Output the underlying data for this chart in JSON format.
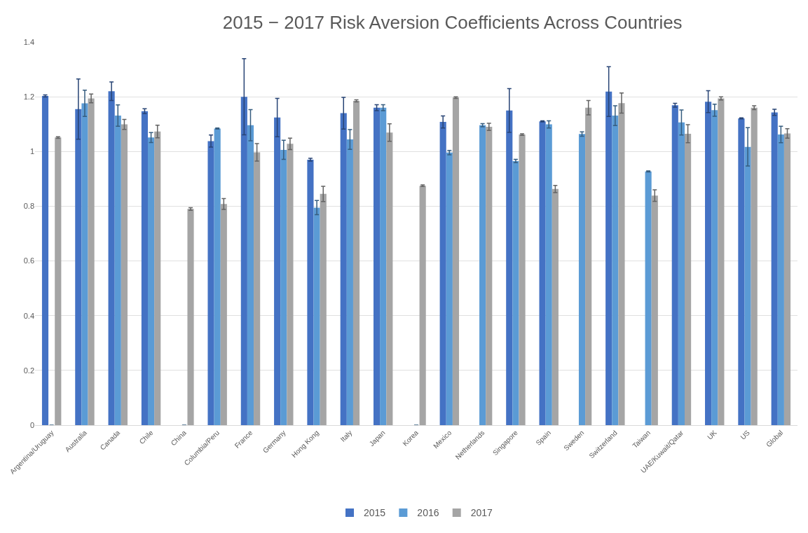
{
  "chart_data": {
    "type": "bar",
    "title": "2015 − 2017 Risk Aversion Coefficients Across Countries",
    "categories": [
      "Argentina/Uruguay",
      "Australia",
      "Canada",
      "Chile",
      "China",
      "Columbia/Peru",
      "France",
      "Germany",
      "Hong Kong",
      "Italy",
      "Japan",
      "Korea",
      "Mexico",
      "Netherlands",
      "Singapore",
      "Spain",
      "Sweden",
      "Switzerland",
      "Taiwan",
      "UAE/Kuwait/Qatar",
      "UK",
      "US",
      "Global"
    ],
    "series": [
      {
        "name": "2015",
        "color": "#4472c4",
        "values": [
          1.203,
          1.155,
          1.22,
          1.147,
          null,
          1.038,
          1.2,
          1.124,
          0.97,
          1.14,
          1.16,
          null,
          1.108,
          null,
          1.15,
          1.11,
          null,
          1.219,
          null,
          1.169,
          1.182,
          1.121,
          1.143
        ],
        "errors": [
          0.004,
          0.11,
          0.034,
          0.009,
          null,
          0.022,
          0.139,
          0.07,
          0.005,
          0.058,
          0.011,
          null,
          0.022,
          null,
          0.08,
          0.002,
          null,
          0.091,
          null,
          0.007,
          0.04,
          0.002,
          0.011
        ]
      },
      {
        "name": "2016",
        "color": "#5b9bd5",
        "values": [
          0,
          1.176,
          1.131,
          1.051,
          0,
          1.084,
          1.096,
          1.006,
          0.795,
          1.044,
          1.16,
          0,
          0.996,
          1.096,
          0.965,
          1.099,
          1.064,
          1.131,
          0.927,
          1.106,
          1.151,
          1.017,
          1.062
        ],
        "errors": [
          null,
          0.048,
          0.039,
          0.018,
          null,
          0.002,
          0.057,
          0.035,
          0.026,
          0.036,
          0.011,
          null,
          0.008,
          0.006,
          0.006,
          0.013,
          0.008,
          0.036,
          0.002,
          0.046,
          0.022,
          0.07,
          0.03
        ]
      },
      {
        "name": "2017",
        "color": "#a5a5a5",
        "values": [
          1.051,
          1.194,
          1.099,
          1.073,
          0.79,
          0.808,
          0.997,
          1.028,
          0.845,
          1.185,
          1.069,
          0.875,
          1.197,
          1.09,
          1.062,
          0.863,
          1.16,
          1.177,
          0.839,
          1.065,
          1.194,
          1.16,
          1.066
        ],
        "errors": [
          0.003,
          0.016,
          0.018,
          0.023,
          0.005,
          0.02,
          0.032,
          0.021,
          0.028,
          0.004,
          0.032,
          0.003,
          0.003,
          0.013,
          0.003,
          0.013,
          0.026,
          0.037,
          0.021,
          0.033,
          0.006,
          0.007,
          0.017
        ]
      }
    ],
    "ylim": [
      0,
      1.4
    ],
    "yticks": [
      0,
      0.2,
      0.4,
      0.6,
      0.8,
      1,
      1.2,
      1.4
    ],
    "grid": "y",
    "legend": "bottom"
  }
}
